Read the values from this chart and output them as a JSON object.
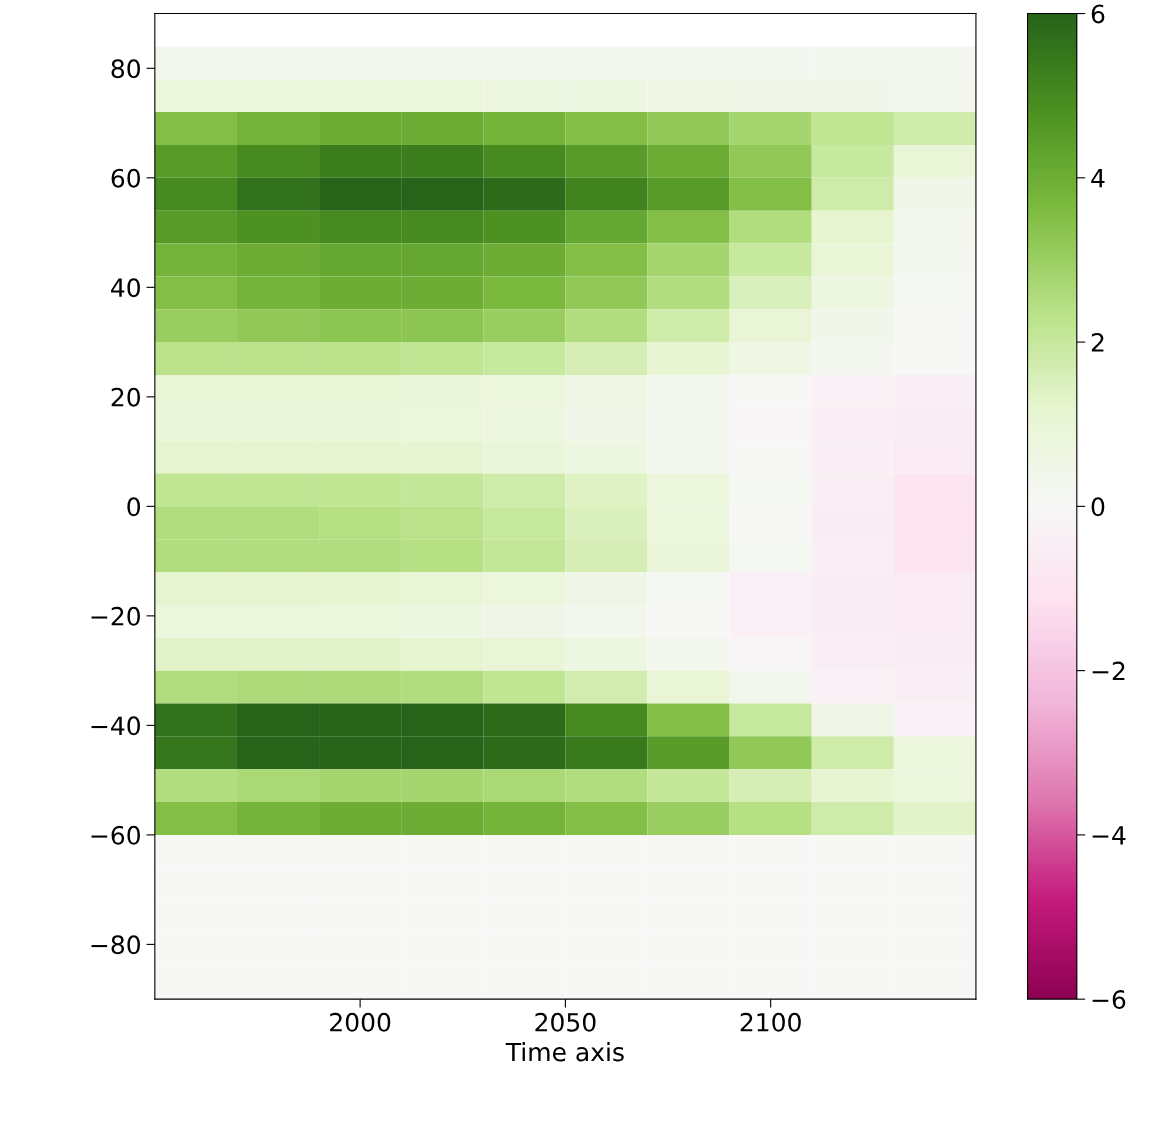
{
  "chart_data": {
    "type": "heatmap",
    "xlabel": "Time axis",
    "x": [
      1960,
      1980,
      2000,
      2020,
      2040,
      2060,
      2080,
      2100,
      2120,
      2140
    ],
    "y": [
      81,
      75,
      69,
      63,
      57,
      51,
      45,
      39,
      33,
      27,
      21,
      15,
      9,
      3,
      -3,
      -9,
      -15,
      -21,
      -27,
      -33,
      -39,
      -45,
      -51,
      -57,
      -63,
      -69,
      -75,
      -81,
      -87
    ],
    "cells": [
      [
        0.3,
        0.3,
        0.3,
        0.3,
        0.3,
        0.3,
        0.3,
        0.2,
        0.2,
        0.2
      ],
      [
        0.8,
        0.8,
        0.8,
        0.8,
        0.7,
        0.7,
        0.6,
        0.5,
        0.4,
        0.3
      ],
      [
        3.5,
        3.8,
        4,
        4,
        3.8,
        3.5,
        3.2,
        2.8,
        2.2,
        1.8
      ],
      [
        4.5,
        5,
        5.3,
        5.3,
        5,
        4.5,
        4,
        3.2,
        2,
        1
      ],
      [
        5,
        5.6,
        6,
        6,
        5.8,
        5.2,
        4.5,
        3.5,
        1.8,
        0.5
      ],
      [
        4.5,
        4.8,
        5,
        5,
        4.8,
        4.2,
        3.5,
        2.5,
        1.2,
        0.3
      ],
      [
        3.8,
        4,
        4.2,
        4.2,
        4,
        3.5,
        2.8,
        2,
        1,
        0.2
      ],
      [
        3.5,
        3.8,
        4,
        4,
        3.7,
        3.2,
        2.5,
        1.5,
        0.7,
        0.1
      ],
      [
        3,
        3.2,
        3.3,
        3.3,
        3,
        2.5,
        1.8,
        1,
        0.4,
        0
      ],
      [
        2.3,
        2.3,
        2.3,
        2.2,
        2,
        1.6,
        1.1,
        0.6,
        0.2,
        0
      ],
      [
        1,
        1,
        1,
        0.9,
        0.8,
        0.6,
        0.3,
        0,
        -0.3,
        -0.5
      ],
      [
        0.9,
        0.9,
        0.9,
        0.8,
        0.7,
        0.5,
        0.2,
        -0.1,
        -0.4,
        -0.6
      ],
      [
        1.2,
        1.2,
        1.2,
        1.1,
        0.9,
        0.7,
        0.3,
        0,
        -0.4,
        -0.7
      ],
      [
        2.2,
        2.2,
        2.2,
        2.1,
        1.8,
        1.4,
        0.8,
        0.1,
        -0.5,
        -1
      ],
      [
        2.5,
        2.5,
        2.4,
        2.3,
        2,
        1.5,
        0.8,
        0,
        -0.6,
        -1.1
      ],
      [
        2.5,
        2.5,
        2.5,
        2.4,
        2.1,
        1.6,
        0.9,
        0.1,
        -0.5,
        -1
      ],
      [
        1.2,
        1.2,
        1.1,
        1,
        0.8,
        0.5,
        0.1,
        -0.3,
        -0.6,
        -0.7
      ],
      [
        0.8,
        0.8,
        0.8,
        0.7,
        0.5,
        0.3,
        0,
        -0.3,
        -0.6,
        -0.7
      ],
      [
        1.3,
        1.3,
        1.3,
        1.2,
        1,
        0.7,
        0.3,
        -0.1,
        -0.5,
        -0.6
      ],
      [
        2.5,
        2.6,
        2.6,
        2.5,
        2.2,
        1.7,
        1,
        0.3,
        -0.3,
        -0.5
      ],
      [
        5.6,
        6,
        6,
        6,
        5.8,
        5,
        3.5,
        2,
        0.5,
        -0.3
      ],
      [
        5.5,
        6,
        6,
        6,
        5.8,
        5.4,
        4.5,
        3.2,
        1.8,
        0.8
      ],
      [
        2.5,
        2.7,
        2.8,
        2.8,
        2.7,
        2.5,
        2.1,
        1.6,
        1.1,
        0.8
      ],
      [
        3.5,
        3.8,
        4,
        4,
        3.8,
        3.5,
        3,
        2.4,
        1.8,
        1.3
      ],
      [
        0,
        0,
        0,
        0,
        0,
        0,
        0,
        0,
        0,
        0
      ],
      [
        0,
        0,
        0,
        0,
        0,
        0,
        0,
        0,
        0,
        0
      ],
      [
        0,
        0,
        0,
        0,
        0,
        0,
        0,
        0,
        0,
        0
      ],
      [
        0,
        0,
        0,
        0,
        0,
        0,
        0,
        0,
        0,
        0
      ],
      [
        0,
        0,
        0,
        0,
        0,
        0,
        0,
        0,
        0,
        0
      ]
    ],
    "xlim": [
      1950,
      2150
    ],
    "xticks": [
      2000,
      2050,
      2100
    ],
    "ylim": [
      -90,
      90
    ],
    "yticks": [
      {
        "value": -80,
        "label": "−80"
      },
      {
        "value": -60,
        "label": "−60"
      },
      {
        "value": -40,
        "label": "−40"
      },
      {
        "value": -20,
        "label": "−20"
      },
      0,
      20,
      40,
      60,
      80
    ],
    "clim": [
      -6,
      6
    ],
    "cticks": [
      {
        "value": -6,
        "label": "−6"
      },
      {
        "value": -4,
        "label": "−4"
      },
      {
        "value": -2,
        "label": "−2"
      },
      0,
      2,
      4,
      6
    ],
    "grid": false
  }
}
